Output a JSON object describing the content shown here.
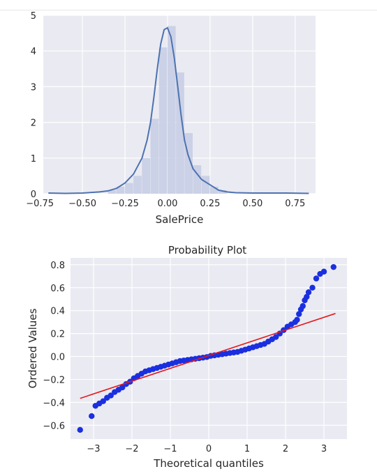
{
  "chart_data": [
    {
      "type": "histogram_kde",
      "xlabel": "SalePrice",
      "ylabel": "",
      "title": "",
      "xlim": [
        -0.73,
        0.87
      ],
      "ylim": [
        0,
        5
      ],
      "xticks": [
        -0.75,
        -0.5,
        -0.25,
        0.0,
        0.25,
        0.5,
        0.75
      ],
      "xtick_labels": [
        "−0.75",
        "−0.50",
        "−0.25",
        "0.00",
        "0.25",
        "0.50",
        "0.75"
      ],
      "yticks": [
        0,
        1,
        2,
        3,
        4,
        5
      ],
      "ytick_labels": [
        "0",
        "1",
        "2",
        "3",
        "4",
        "5"
      ],
      "grid": true,
      "bar_color": "#c5cde4",
      "line_color": "#4c72b0",
      "background": "#eaeaf2",
      "histogram": {
        "bin_edges": [
          -0.35,
          -0.3,
          -0.25,
          -0.2,
          -0.15,
          -0.1,
          -0.05,
          0.0,
          0.05,
          0.1,
          0.15,
          0.2,
          0.25,
          0.3,
          0.35
        ],
        "densities": [
          0.1,
          0.2,
          0.3,
          0.5,
          1.0,
          2.1,
          4.1,
          4.7,
          3.4,
          1.7,
          0.8,
          0.5,
          0.2,
          0.1
        ]
      },
      "kde": {
        "x": [
          -0.7,
          -0.6,
          -0.5,
          -0.4,
          -0.35,
          -0.3,
          -0.25,
          -0.2,
          -0.15,
          -0.12,
          -0.1,
          -0.08,
          -0.06,
          -0.04,
          -0.02,
          0.0,
          0.02,
          0.04,
          0.06,
          0.08,
          0.1,
          0.12,
          0.15,
          0.2,
          0.25,
          0.3,
          0.35,
          0.4,
          0.5,
          0.6,
          0.7,
          0.83
        ],
        "y": [
          0.02,
          0.01,
          0.02,
          0.05,
          0.08,
          0.15,
          0.3,
          0.55,
          1.0,
          1.5,
          2.0,
          2.7,
          3.5,
          4.2,
          4.6,
          4.65,
          4.4,
          3.8,
          3.0,
          2.2,
          1.5,
          1.1,
          0.7,
          0.4,
          0.25,
          0.1,
          0.05,
          0.03,
          0.02,
          0.02,
          0.02,
          0.01
        ]
      }
    },
    {
      "type": "scatter",
      "title": "Probability Plot",
      "xlabel": "Theoretical quantiles",
      "ylabel": "Ordered Values",
      "xlim": [
        -3.6,
        3.6
      ],
      "ylim": [
        -0.72,
        0.86
      ],
      "xticks": [
        -3,
        -2,
        -1,
        0,
        1,
        2,
        3
      ],
      "xtick_labels": [
        "−3",
        "−2",
        "−1",
        "0",
        "1",
        "2",
        "3"
      ],
      "yticks": [
        -0.6,
        -0.4,
        -0.2,
        0.0,
        0.2,
        0.4,
        0.6,
        0.8
      ],
      "ytick_labels": [
        "−0.6",
        "−0.4",
        "−0.2",
        "0.0",
        "0.2",
        "0.4",
        "0.6",
        "0.8"
      ],
      "grid": true,
      "background": "#eaeaf2",
      "point_color": "#1a2fe0",
      "line_color": "#e41a1c",
      "fit_line": {
        "x": [
          -3.35,
          3.3
        ],
        "y": [
          -0.365,
          0.375
        ]
      },
      "points": {
        "x": [
          -3.35,
          -3.05,
          -2.95,
          -2.85,
          -2.75,
          -2.65,
          -2.55,
          -2.45,
          -2.35,
          -2.25,
          -2.15,
          -2.05,
          -1.95,
          -1.85,
          -1.75,
          -1.65,
          -1.55,
          -1.45,
          -1.35,
          -1.25,
          -1.15,
          -1.05,
          -0.95,
          -0.85,
          -0.75,
          -0.65,
          -0.55,
          -0.45,
          -0.35,
          -0.25,
          -0.15,
          -0.05,
          0.05,
          0.15,
          0.25,
          0.35,
          0.45,
          0.55,
          0.65,
          0.75,
          0.85,
          0.95,
          1.05,
          1.15,
          1.25,
          1.35,
          1.45,
          1.55,
          1.65,
          1.75,
          1.85,
          1.95,
          2.05,
          2.15,
          2.25,
          2.3,
          2.35,
          2.4,
          2.45,
          2.5,
          2.55,
          2.6,
          2.7,
          2.8,
          2.9,
          3.0,
          3.25
        ],
        "y": [
          -0.64,
          -0.52,
          -0.43,
          -0.41,
          -0.39,
          -0.36,
          -0.34,
          -0.31,
          -0.29,
          -0.27,
          -0.24,
          -0.22,
          -0.19,
          -0.17,
          -0.15,
          -0.13,
          -0.12,
          -0.11,
          -0.1,
          -0.09,
          -0.08,
          -0.07,
          -0.06,
          -0.05,
          -0.04,
          -0.035,
          -0.03,
          -0.025,
          -0.02,
          -0.015,
          -0.01,
          -0.005,
          0.005,
          0.01,
          0.015,
          0.02,
          0.025,
          0.03,
          0.035,
          0.04,
          0.05,
          0.06,
          0.07,
          0.08,
          0.09,
          0.1,
          0.11,
          0.13,
          0.15,
          0.17,
          0.2,
          0.23,
          0.26,
          0.28,
          0.3,
          0.32,
          0.37,
          0.41,
          0.44,
          0.49,
          0.52,
          0.56,
          0.6,
          0.68,
          0.72,
          0.74,
          0.78
        ]
      }
    }
  ]
}
